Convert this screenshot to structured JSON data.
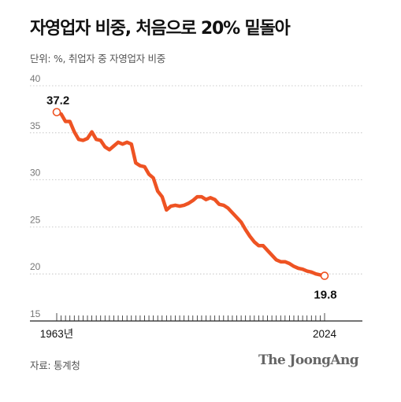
{
  "title": "자영업자 비중, 처음으로 20% 밑돌아",
  "subtitle": "단위: %, 취업자 중 자영업자 비중",
  "source": "자료: 통계청",
  "brand": "The JoongAng",
  "colors": {
    "line": "#ee5323",
    "axis": "#222222",
    "grid": "#bbbbbb",
    "text": "#111111",
    "muted": "#555555"
  },
  "chart_data": {
    "type": "line",
    "title": "자영업자 비중, 처음으로 20% 밑돌아",
    "xlabel": "",
    "ylabel": "단위: %, 취업자 중 자영업자 비중",
    "xlim": [
      1963,
      2024
    ],
    "ylim": [
      15,
      40
    ],
    "yticks": [
      15,
      20,
      25,
      30,
      35,
      40
    ],
    "xtick_labels": [
      {
        "x": 1963,
        "label": "1963년"
      },
      {
        "x": 2024,
        "label": "2024"
      }
    ],
    "grid": true,
    "annotations": [
      {
        "x": 1963,
        "y": 37.2,
        "label": "37.2"
      },
      {
        "x": 2024,
        "y": 19.8,
        "label": "19.8"
      }
    ],
    "x": [
      1963,
      1964,
      1965,
      1966,
      1967,
      1968,
      1969,
      1970,
      1971,
      1972,
      1973,
      1974,
      1975,
      1976,
      1977,
      1978,
      1979,
      1980,
      1981,
      1982,
      1983,
      1984,
      1985,
      1986,
      1987,
      1988,
      1989,
      1990,
      1991,
      1992,
      1993,
      1994,
      1995,
      1996,
      1997,
      1998,
      1999,
      2000,
      2001,
      2002,
      2003,
      2004,
      2005,
      2006,
      2007,
      2008,
      2009,
      2010,
      2011,
      2012,
      2013,
      2014,
      2015,
      2016,
      2017,
      2018,
      2019,
      2020,
      2021,
      2022,
      2023,
      2024
    ],
    "series": [
      {
        "values": [
          37.2,
          37.0,
          36.2,
          36.2,
          35.1,
          34.3,
          34.2,
          34.4,
          35.1,
          34.3,
          34.2,
          33.5,
          33.2,
          33.6,
          34.0,
          33.8,
          34.0,
          33.8,
          31.8,
          31.5,
          31.4,
          30.6,
          30.2,
          28.8,
          28.2,
          26.8,
          27.2,
          27.3,
          27.2,
          27.3,
          27.5,
          27.8,
          28.2,
          28.2,
          27.9,
          28.1,
          27.9,
          27.4,
          27.3,
          27.0,
          26.5,
          26.0,
          25.5,
          24.7,
          24.0,
          23.4,
          23.0,
          23.0,
          22.5,
          22.0,
          21.5,
          21.3,
          21.3,
          21.1,
          20.8,
          20.6,
          20.5,
          20.3,
          20.2,
          20.0,
          19.9,
          19.8
        ]
      }
    ]
  }
}
